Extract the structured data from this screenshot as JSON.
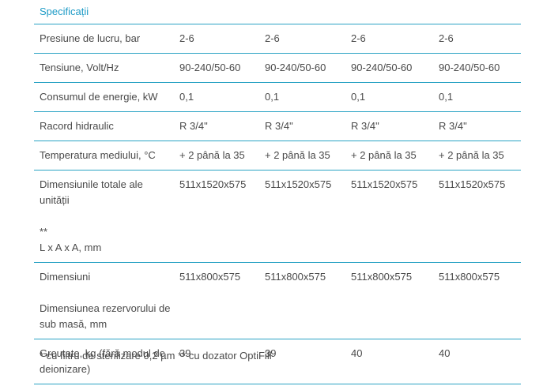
{
  "title": "Specificații",
  "rows": [
    {
      "label": "Presiune de lucru, bar",
      "values": [
        "2-6",
        "2-6",
        "2-6",
        "2-6"
      ]
    },
    {
      "label": "Tensiune, Volt/Hz",
      "values": [
        "90-240/50-60",
        "90-240/50-60",
        "90-240/50-60",
        "90-240/50-60"
      ]
    },
    {
      "label": "Consumul de energie, kW",
      "values": [
        "0,1",
        "0,1",
        "0,1",
        "0,1"
      ]
    },
    {
      "label": "Racord hidraulic",
      "values": [
        "R 3/4\"",
        "R 3/4\"",
        "R 3/4\"",
        "R 3/4\""
      ]
    },
    {
      "label": "Temperatura mediului, °C",
      "values": [
        "+ 2 până la 35",
        "+ 2 până la 35",
        "+ 2 până la 35",
        "+ 2 până la 35"
      ]
    },
    {
      "label_line1": "Dimensiunile totale ale unității",
      "label_line2": "**",
      "label_line3": "L x A x A, mm",
      "values": [
        "511x1520x575",
        "511x1520x575",
        "511x1520x575",
        "511x1520x575"
      ]
    },
    {
      "label_line1": "Dimensiuni",
      "label_line2": "Dimensiunea rezervorului de sub masă, mm",
      "values": [
        "511x800x575",
        "511x800x575",
        "511x800x575",
        "511x800x575"
      ]
    },
    {
      "label": "Greutate, kg (fără modul de deionizare)",
      "values": [
        "39",
        "39",
        "40",
        "40"
      ]
    }
  ],
  "footnote": "* cu filtru de sterilizare 0,2 µm ** cu dozator OptiFill"
}
